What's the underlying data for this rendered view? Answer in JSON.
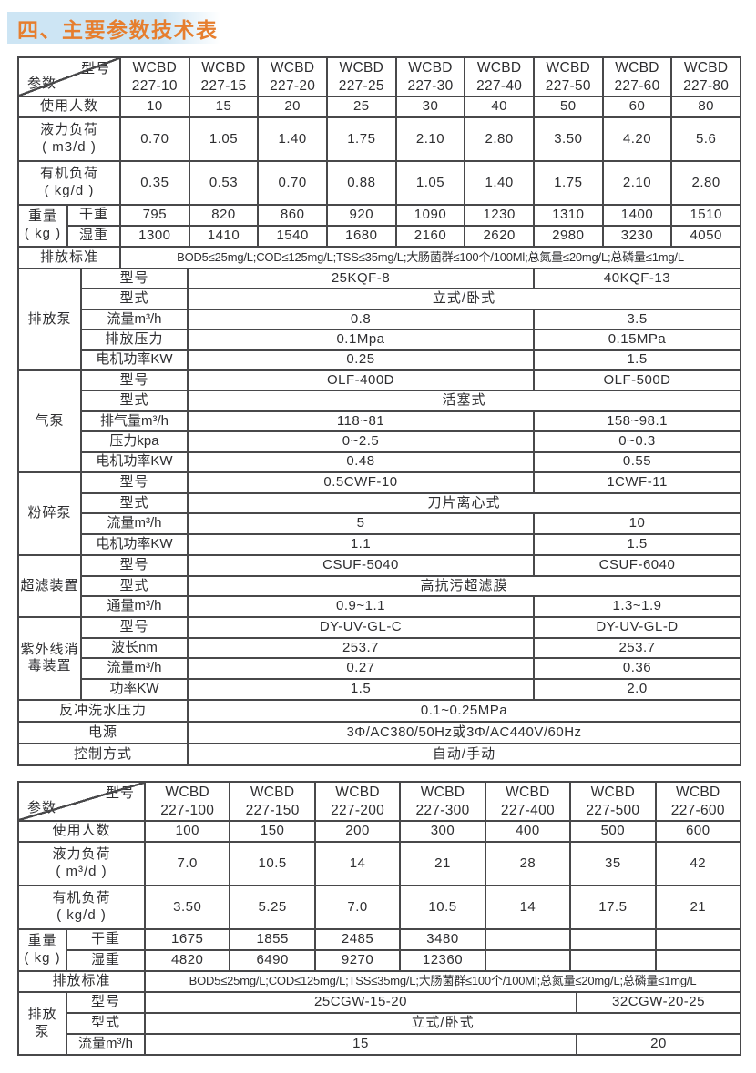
{
  "page": {
    "title": "四、主要参数技术表"
  },
  "colors": {
    "accent_orange": "#e67e2e",
    "title_bar_blue": "#cde5f4",
    "border": "#48484a",
    "text": "#2e2e30"
  },
  "table1": {
    "corner": {
      "top_right": "型号",
      "bottom_left": "参数"
    },
    "columns": [
      "WCBD\n227-10",
      "WCBD\n227-15",
      "WCBD\n227-20",
      "WCBD\n227-25",
      "WCBD\n227-30",
      "WCBD\n227-40",
      "WCBD\n227-50",
      "WCBD\n227-60",
      "WCBD\n227-80"
    ],
    "users": {
      "label": "使用人数",
      "values": [
        "10",
        "15",
        "20",
        "25",
        "30",
        "40",
        "50",
        "60",
        "80"
      ]
    },
    "hydraulic": {
      "label": "液力负荷\n( m3/d )",
      "values": [
        "0.70",
        "1.05",
        "1.40",
        "1.75",
        "2.10",
        "2.80",
        "3.50",
        "4.20",
        "5.6"
      ]
    },
    "organic": {
      "label": "有机负荷\n( kg/d )",
      "values": [
        "0.35",
        "0.53",
        "0.70",
        "0.88",
        "1.05",
        "1.40",
        "1.75",
        "2.10",
        "2.80"
      ]
    },
    "weight": {
      "group": "重量\n( kg )",
      "dry_label": "干重",
      "dry": [
        "795",
        "820",
        "860",
        "920",
        "1090",
        "1230",
        "1310",
        "1400",
        "1510"
      ],
      "wet_label": "湿重",
      "wet": [
        "1300",
        "1410",
        "1540",
        "1680",
        "2160",
        "2620",
        "2980",
        "3230",
        "4050"
      ]
    },
    "standard": {
      "label": "排放标准",
      "value": "BOD5≤25mg/L;COD≤125mg/L;TSS≤35mg/L;大肠菌群≤100个/100Ml;总氮量≤20mg/L;总磷量≤1mg/L"
    },
    "sections": [
      {
        "group": "排放泵",
        "rows": [
          {
            "l": "型号",
            "v1": "25KQF-8",
            "v2": "40KQF-13"
          },
          {
            "l": "型式",
            "span": "立式/卧式"
          },
          {
            "l": "流量m³/h",
            "v1": "0.8",
            "v2": "3.5"
          },
          {
            "l": "排放压力",
            "v1": "0.1Mpa",
            "v2": "0.15MPa"
          },
          {
            "l": "电机功率KW",
            "v1": "0.25",
            "v2": "1.5"
          }
        ]
      },
      {
        "group": "气泵",
        "rows": [
          {
            "l": "型号",
            "v1": "OLF-400D",
            "v2": "OLF-500D"
          },
          {
            "l": "型式",
            "span": "活塞式"
          },
          {
            "l": "排气量m³/h",
            "v1": "118~81",
            "v2": "158~98.1"
          },
          {
            "l": "压力kpa",
            "v1": "0~2.5",
            "v2": "0~0.3"
          },
          {
            "l": "电机功率KW",
            "v1": "0.48",
            "v2": "0.55"
          }
        ]
      },
      {
        "group": "粉碎泵",
        "rows": [
          {
            "l": "型号",
            "v1": "0.5CWF-10",
            "v2": "1CWF-11"
          },
          {
            "l": "型式",
            "span": "刀片离心式"
          },
          {
            "l": "流量m³/h",
            "v1": "5",
            "v2": "10"
          },
          {
            "l": "电机功率KW",
            "v1": "1.1",
            "v2": "1.5"
          }
        ]
      },
      {
        "group": "超滤装置",
        "rows": [
          {
            "l": "型号",
            "v1": "CSUF-5040",
            "v2": "CSUF-6040"
          },
          {
            "l": "型式",
            "span": "高抗污超滤膜"
          },
          {
            "l": "通量m³/h",
            "v1": "0.9~1.1",
            "v2": "1.3~1.9"
          }
        ]
      },
      {
        "group": "紫外线消\n毒装置",
        "rows": [
          {
            "l": "型号",
            "v1": "DY-UV-GL-C",
            "v2": "DY-UV-GL-D"
          },
          {
            "l": "波长nm",
            "v1": "253.7",
            "v2": "253.7"
          },
          {
            "l": "流量m³/h",
            "v1": "0.27",
            "v2": "0.36"
          },
          {
            "l": "功率KW",
            "v1": "1.5",
            "v2": "2.0"
          }
        ]
      }
    ],
    "bottom": [
      {
        "l": "反冲洗水压力",
        "v": "0.1~0.25MPa"
      },
      {
        "l": "电源",
        "v": "3Φ/AC380/50Hz或3Φ/AC440V/60Hz"
      },
      {
        "l": "控制方式",
        "v": "自动/手动"
      }
    ]
  },
  "table2": {
    "corner": {
      "top_right": "型号",
      "bottom_left": "参数"
    },
    "columns": [
      "WCBD\n227-100",
      "WCBD\n227-150",
      "WCBD\n227-200",
      "WCBD\n227-300",
      "WCBD\n227-400",
      "WCBD\n227-500",
      "WCBD\n227-600"
    ],
    "users": {
      "label": "使用人数",
      "values": [
        "100",
        "150",
        "200",
        "300",
        "400",
        "500",
        "600"
      ]
    },
    "hydraulic": {
      "label": "液力负荷\n( m³/d )",
      "values": [
        "7.0",
        "10.5",
        "14",
        "21",
        "28",
        "35",
        "42"
      ]
    },
    "organic": {
      "label": "有机负荷\n( kg/d )",
      "values": [
        "3.50",
        "5.25",
        "7.0",
        "10.5",
        "14",
        "17.5",
        "21"
      ]
    },
    "weight": {
      "group": "重量\n( kg )",
      "dry_label": "干重",
      "dry": [
        "1675",
        "1855",
        "2485",
        "3480",
        "",
        "",
        ""
      ],
      "wet_label": "湿重",
      "wet": [
        "4820",
        "6490",
        "9270",
        "12360",
        "",
        "",
        ""
      ]
    },
    "standard": {
      "label": "排放标准",
      "value": "BOD5≤25mg/L;COD≤125mg/L;TSS≤35mg/L;大肠菌群≤100个/100Ml;总氮量≤20mg/L;总磷量≤1mg/L"
    },
    "pump": {
      "group": "排放\n泵",
      "rows": [
        {
          "l": "型号",
          "v1": "25CGW-15-20",
          "v2": "32CGW-20-25"
        },
        {
          "l": "型式",
          "span": "立式/卧式"
        },
        {
          "l": "流量m³/h",
          "v1": "15",
          "v2": "20"
        }
      ]
    }
  }
}
